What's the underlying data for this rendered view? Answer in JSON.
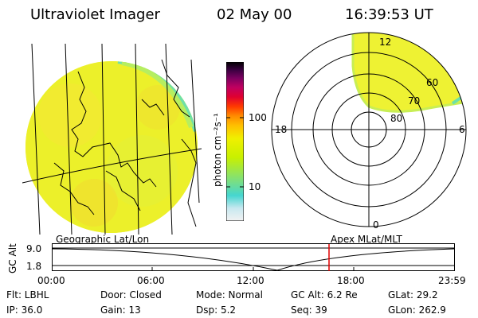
{
  "header": {
    "instrument": "Ultraviolet Imager",
    "date": "02 May 00",
    "time": "16:39:53 UT"
  },
  "colorbar": {
    "unit_label": "photon cm⁻²s⁻¹",
    "tick_100": "100",
    "tick_10": "10",
    "colors": [
      "#e6e6e6",
      "#c8e8f0",
      "#45d6d0",
      "#7fe07a",
      "#c8f000",
      "#f0f000",
      "#ffc000",
      "#ff8c00",
      "#ff3a00",
      "#e00030",
      "#c00060",
      "#7a0060",
      "#3a0040",
      "#000000"
    ]
  },
  "polar_plot": {
    "labels": {
      "top": "12",
      "right": "6",
      "bottom": "0",
      "left": "18",
      "lat_60": "60",
      "lat_70": "70",
      "lat_80": "80"
    }
  },
  "timeline": {
    "left_label": "Geographic Lat/Lon",
    "right_label": "Apex MLat/MLT",
    "y_axis_title": "GC Alt",
    "y_top": "9.0",
    "y_bottom": "1.8",
    "x_ticks": [
      "00:00",
      "06:00",
      "12:00",
      "18:00",
      "23:59"
    ],
    "current_time_marker_color": "#e00000"
  },
  "info": {
    "flt": "Flt: LBHL",
    "door": "Door: Closed",
    "mode": "Mode: Normal",
    "gc_alt": "GC Alt: 6.2 Re",
    "glat": "GLat:  29.2",
    "ip": "IP: 36.0",
    "gain": "Gain: 13",
    "dsp": "Dsp:    5.2",
    "seq": "Seq: 39",
    "glon": "GLon: 262.9"
  }
}
